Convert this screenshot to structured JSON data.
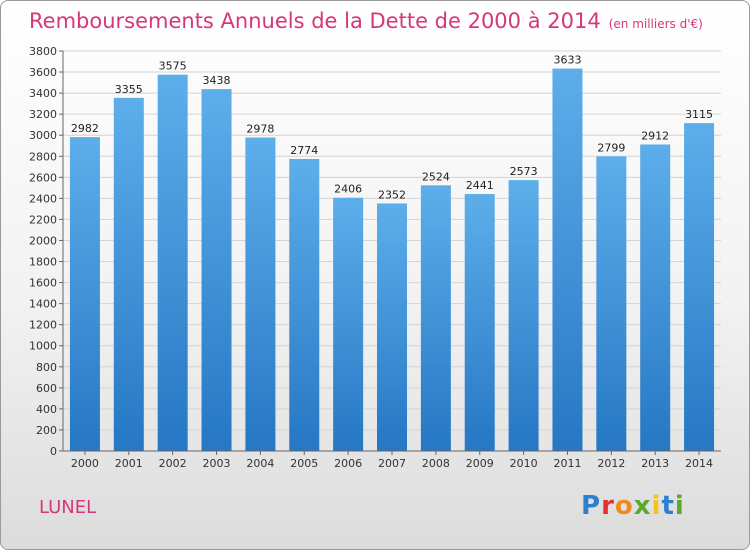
{
  "chart_data": {
    "type": "bar",
    "title": "Remboursements Annuels de la Dette de 2000 à 2014",
    "subtitle": "(en milliers d'€)",
    "categories": [
      "2000",
      "2001",
      "2002",
      "2003",
      "2004",
      "2005",
      "2006",
      "2007",
      "2008",
      "2009",
      "2010",
      "2011",
      "2012",
      "2013",
      "2014"
    ],
    "values": [
      2982,
      3355,
      3575,
      3438,
      2978,
      2774,
      2406,
      2352,
      2524,
      2441,
      2573,
      3633,
      2799,
      2912,
      3115
    ],
    "ylim": [
      0,
      3800
    ],
    "ytick_step": 200,
    "grid": true,
    "bar_color": "#3b8fd6",
    "title_color": "#d8367a"
  },
  "footer": {
    "place": "LUNEL",
    "logo": "Proxiti"
  }
}
